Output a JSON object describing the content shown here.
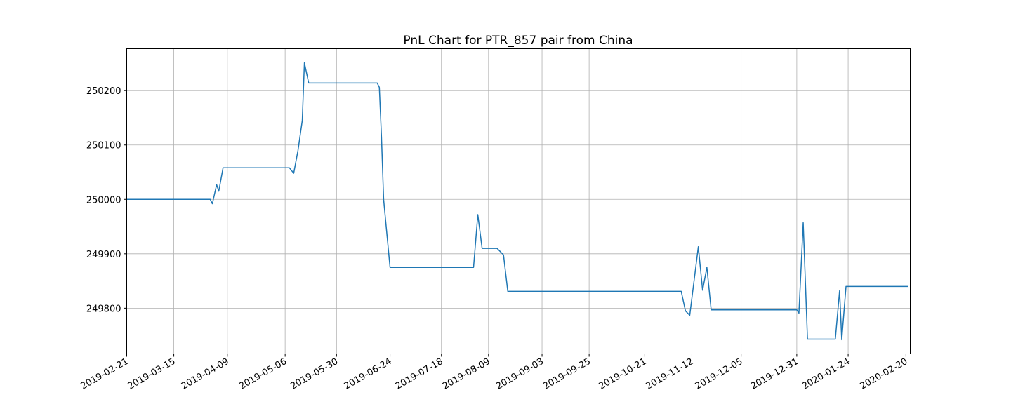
{
  "chart_data": {
    "type": "line",
    "title": "PnL Chart for PTR_857 pair from China",
    "xlabel": "",
    "ylabel": "",
    "grid": true,
    "legend": "none",
    "x_axis_kind": "date",
    "xlim": [
      "2019-02-21",
      "2020-02-22"
    ],
    "ylim": [
      249716,
      250277
    ],
    "x_ticks": [
      "2019-02-21",
      "2019-03-15",
      "2019-04-09",
      "2019-05-06",
      "2019-05-30",
      "2019-06-24",
      "2019-07-18",
      "2019-08-09",
      "2019-09-03",
      "2019-09-25",
      "2019-10-21",
      "2019-11-12",
      "2019-12-05",
      "2019-12-31",
      "2020-01-24",
      "2020-02-20"
    ],
    "y_ticks": [
      249800,
      249900,
      250000,
      250100,
      250200
    ],
    "series": [
      {
        "color": "#1f77b4",
        "points": [
          [
            "2019-02-21",
            250000
          ],
          [
            "2019-04-01",
            250000
          ],
          [
            "2019-04-02",
            249992
          ],
          [
            "2019-04-04",
            250027
          ],
          [
            "2019-04-05",
            250015
          ],
          [
            "2019-04-07",
            250058
          ],
          [
            "2019-05-08",
            250058
          ],
          [
            "2019-05-10",
            250048
          ],
          [
            "2019-05-12",
            250090
          ],
          [
            "2019-05-14",
            250145
          ],
          [
            "2019-05-15",
            250251
          ],
          [
            "2019-05-17",
            250214
          ],
          [
            "2019-06-18",
            250214
          ],
          [
            "2019-06-19",
            250206
          ],
          [
            "2019-06-20",
            250115
          ],
          [
            "2019-06-21",
            250000
          ],
          [
            "2019-06-24",
            249875
          ],
          [
            "2019-08-02",
            249875
          ],
          [
            "2019-08-04",
            249972
          ],
          [
            "2019-08-06",
            249910
          ],
          [
            "2019-08-13",
            249910
          ],
          [
            "2019-08-16",
            249898
          ],
          [
            "2019-08-18",
            249831
          ],
          [
            "2019-11-07",
            249831
          ],
          [
            "2019-11-09",
            249795
          ],
          [
            "2019-11-11",
            249787
          ],
          [
            "2019-11-15",
            249913
          ],
          [
            "2019-11-17",
            249833
          ],
          [
            "2019-11-19",
            249875
          ],
          [
            "2019-11-21",
            249797
          ],
          [
            "2019-12-31",
            249797
          ],
          [
            "2020-01-01",
            249791
          ],
          [
            "2020-01-03",
            249957
          ],
          [
            "2020-01-05",
            249743
          ],
          [
            "2020-01-18",
            249743
          ],
          [
            "2020-01-20",
            249832
          ],
          [
            "2020-01-21",
            249742
          ],
          [
            "2020-01-23",
            249840
          ],
          [
            "2020-02-21",
            249840
          ]
        ]
      }
    ]
  }
}
